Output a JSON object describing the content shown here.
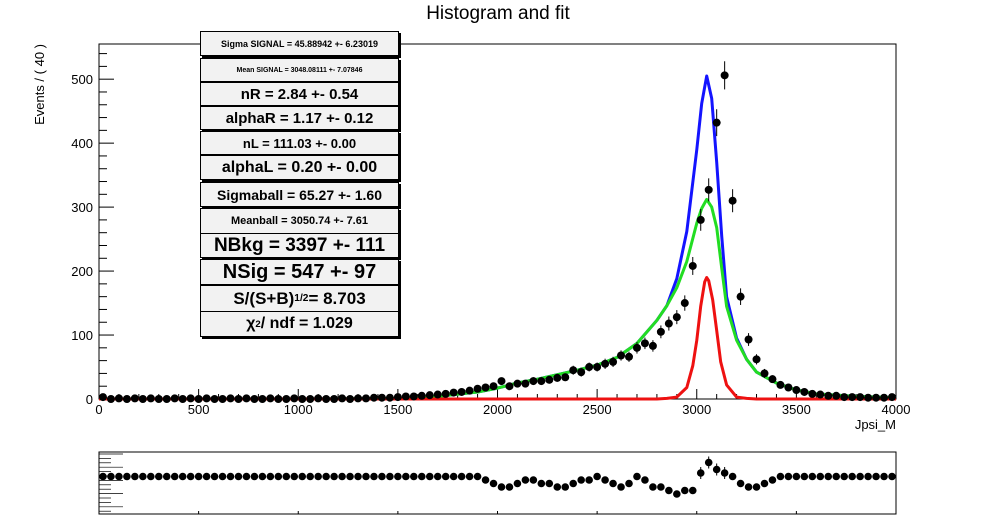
{
  "chart_data": {
    "type": "scatter",
    "title": "Histogram and fit",
    "xlabel": "Jpsi_M",
    "ylabel": "Events / ( 40 )",
    "xlim": [
      0,
      4000
    ],
    "ylim": [
      0,
      555
    ],
    "x_ticks": [
      0,
      500,
      1000,
      1500,
      2000,
      2500,
      3000,
      3500,
      4000
    ],
    "y_ticks": [
      0,
      100,
      200,
      300,
      400,
      500
    ],
    "grid": false,
    "points": {
      "x": [
        20,
        60,
        100,
        140,
        180,
        220,
        260,
        300,
        340,
        380,
        420,
        460,
        500,
        540,
        580,
        620,
        660,
        700,
        740,
        780,
        820,
        860,
        900,
        940,
        980,
        1020,
        1060,
        1100,
        1140,
        1180,
        1220,
        1260,
        1300,
        1340,
        1380,
        1420,
        1460,
        1500,
        1540,
        1580,
        1620,
        1660,
        1700,
        1740,
        1780,
        1820,
        1860,
        1900,
        1940,
        1980,
        2020,
        2060,
        2100,
        2140,
        2180,
        2220,
        2260,
        2300,
        2340,
        2380,
        2420,
        2460,
        2500,
        2540,
        2580,
        2620,
        2660,
        2700,
        2740,
        2780,
        2820,
        2860,
        2900,
        2940,
        2980,
        3020,
        3060,
        3100,
        3140,
        3180,
        3220,
        3260,
        3300,
        3340,
        3380,
        3420,
        3460,
        3500,
        3540,
        3580,
        3620,
        3660,
        3700,
        3740,
        3780,
        3820,
        3860,
        3900,
        3940,
        3980
      ],
      "y": [
        3,
        0,
        1,
        0,
        1,
        0,
        1,
        0,
        0,
        1,
        0,
        1,
        0,
        1,
        0,
        0,
        1,
        0,
        1,
        0,
        0,
        1,
        0,
        0,
        1,
        0,
        0,
        1,
        0,
        0,
        1,
        0,
        1,
        1,
        2,
        2,
        2,
        3,
        4,
        4,
        5,
        6,
        7,
        8,
        10,
        11,
        13,
        16,
        18,
        20,
        28,
        20,
        24,
        24,
        28,
        28,
        30,
        33,
        34,
        45,
        42,
        50,
        50,
        55,
        58,
        68,
        66,
        80,
        87,
        83,
        105,
        118,
        128,
        150,
        208,
        280,
        327,
        432,
        506,
        310,
        160,
        93,
        62,
        40,
        31,
        22,
        18,
        14,
        11,
        8,
        7,
        5,
        5,
        3,
        3,
        3,
        2,
        2,
        2,
        3
      ],
      "err": [
        2,
        1,
        1,
        1,
        1,
        1,
        1,
        1,
        1,
        1,
        1,
        1,
        1,
        1,
        1,
        1,
        1,
        1,
        1,
        1,
        1,
        1,
        1,
        1,
        1,
        1,
        1,
        1,
        1,
        1,
        1,
        1,
        1,
        1,
        2,
        2,
        2,
        2,
        2,
        2,
        2,
        3,
        3,
        3,
        3,
        3,
        4,
        4,
        4,
        5,
        5,
        5,
        5,
        5,
        6,
        6,
        6,
        6,
        6,
        7,
        7,
        7,
        7,
        8,
        8,
        8,
        8,
        9,
        9,
        9,
        10,
        11,
        11,
        12,
        14,
        17,
        18,
        21,
        22,
        18,
        13,
        10,
        8,
        7,
        6,
        5,
        5,
        4,
        4,
        3,
        3,
        3,
        3,
        2,
        2,
        2,
        2,
        2,
        2,
        2
      ]
    },
    "series": [
      {
        "name": "total",
        "color": "#1414ff",
        "x": [
          0,
          1000,
          1500,
          1700,
          1900,
          2000,
          2100,
          2200,
          2300,
          2400,
          2500,
          2600,
          2700,
          2800,
          2850,
          2900,
          2950,
          3000,
          3025,
          3050,
          3075,
          3100,
          3125,
          3150,
          3200,
          3250,
          3300,
          3400,
          3500,
          3600,
          3800,
          4000
        ],
        "y": [
          0,
          0,
          1,
          4,
          11,
          17,
          25,
          31,
          38,
          45,
          53,
          65,
          87,
          123,
          146,
          188,
          262,
          390,
          462,
          505,
          470,
          370,
          255,
          160,
          95,
          62,
          42,
          25,
          14,
          8,
          4,
          2
        ]
      },
      {
        "name": "background",
        "color": "#22dd22",
        "x": [
          0,
          1000,
          1500,
          1700,
          1900,
          2000,
          2100,
          2200,
          2300,
          2400,
          2500,
          2600,
          2700,
          2800,
          2850,
          2900,
          2950,
          3000,
          3025,
          3050,
          3075,
          3100,
          3125,
          3150,
          3200,
          3250,
          3300,
          3400,
          3500,
          3600,
          3800,
          4000
        ],
        "y": [
          0,
          0,
          1,
          4,
          11,
          17,
          25,
          31,
          38,
          45,
          53,
          65,
          87,
          123,
          146,
          174,
          215,
          275,
          298,
          312,
          300,
          268,
          205,
          145,
          92,
          62,
          42,
          25,
          14,
          8,
          4,
          2
        ]
      },
      {
        "name": "signal",
        "color": "#ee1111",
        "x": [
          0,
          2800,
          2850,
          2900,
          2950,
          2980,
          3000,
          3020,
          3040,
          3050,
          3060,
          3080,
          3100,
          3120,
          3150,
          3200,
          3250,
          3300,
          4000
        ],
        "y": [
          0,
          0,
          1,
          3,
          18,
          52,
          92,
          145,
          183,
          190,
          185,
          155,
          107,
          58,
          22,
          3,
          1,
          0,
          0
        ]
      }
    ],
    "pull_points": [
      3,
      3,
      3,
      3,
      3,
      3,
      3,
      3,
      3,
      3,
      3,
      3,
      3,
      3,
      3,
      3,
      3,
      3,
      3,
      3,
      3,
      3,
      3,
      3,
      3,
      3,
      3,
      3,
      3,
      3,
      3,
      3,
      3,
      3,
      3,
      3,
      3,
      3,
      3,
      3,
      3,
      3,
      3,
      3,
      3,
      3,
      3,
      3,
      2,
      1,
      0,
      0,
      1,
      2,
      2,
      1,
      1,
      0,
      0,
      1,
      2,
      2,
      3,
      2,
      1,
      0,
      1,
      3,
      2,
      0,
      0,
      -1,
      -2,
      -1,
      -1,
      4,
      7,
      5,
      4,
      3,
      1,
      0,
      0,
      1,
      2,
      3,
      3,
      3,
      3,
      3,
      3,
      3,
      3,
      3,
      3,
      3,
      3,
      3,
      3,
      3
    ],
    "fit_parameters": [
      "Sigma SIGNAL = 45.88942 +- 6.23019",
      "Mean SIGNAL = 3048.08111 +- 7.07846",
      "nR = 2.84 +- 0.54",
      "alphaR = 1.17 +- 0.12",
      "nL = 111.03 +- 0.00",
      "alphaL = 0.20 +- 0.00",
      "Sigmaball = 65.27 +- 1.60",
      "Meanball = 3050.74 +- 7.61",
      "NBkg = 3397 +- 111",
      "NSig = 547 +- 97"
    ],
    "significance": {
      "prefix": "S/(S+B)",
      "exponent": "1/2",
      "value": " = 8.703"
    },
    "chi2": {
      "prefix": "χ",
      "exponent": "2",
      "value": " / ndf = 1.029"
    }
  }
}
